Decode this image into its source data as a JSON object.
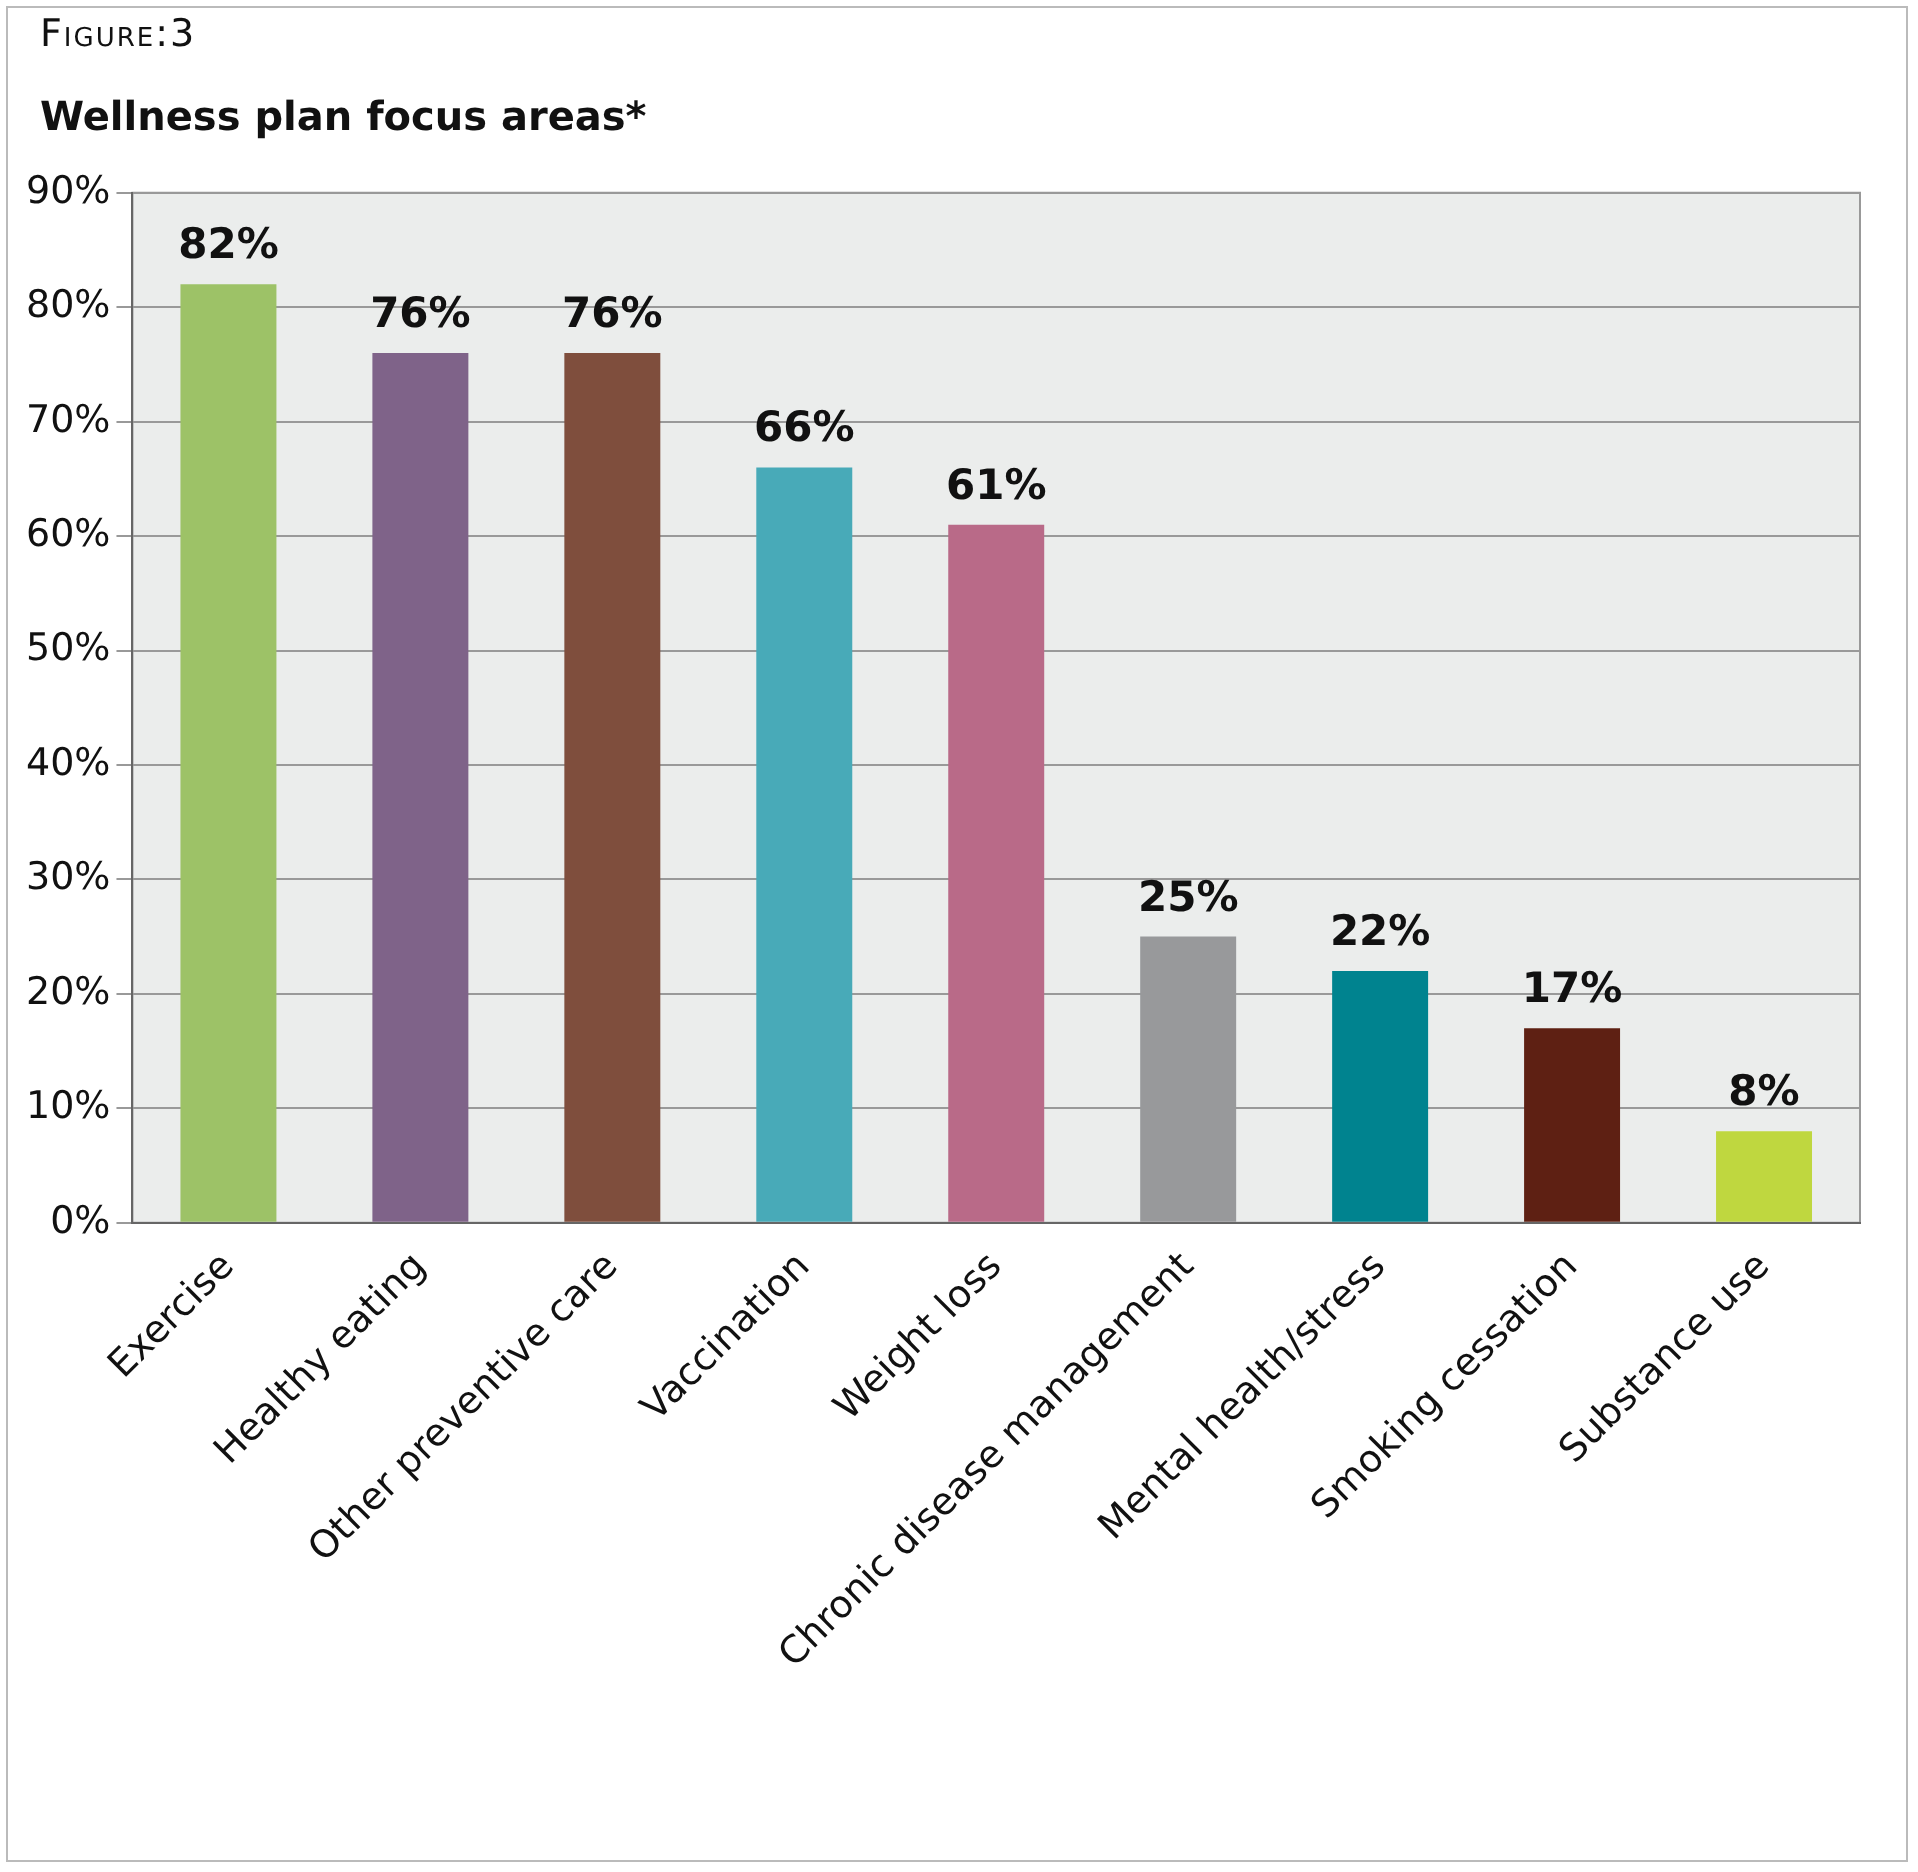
{
  "chart_data": {
    "type": "bar",
    "title": "Figure:3",
    "subtitle": "Wellness plan focus areas*",
    "categories": [
      "Exercise",
      "Healthy eating",
      "Other preventive care",
      "Vaccination",
      "Weight loss",
      "Chronic disease management",
      "Mental health/stress",
      "Smoking cessation",
      "Substance use"
    ],
    "values": [
      82,
      76,
      76,
      66,
      61,
      25,
      22,
      17,
      8
    ],
    "value_labels": [
      "82%",
      "76%",
      "76%",
      "66%",
      "61%",
      "25%",
      "22%",
      "17%",
      "8%"
    ],
    "colors": [
      "#9dc267",
      "#7f6389",
      "#7f4e3d",
      "#48aab8",
      "#b96a88",
      "#98999b",
      "#00838f",
      "#5e2013",
      "#bfd73f"
    ],
    "ylim": [
      0,
      90
    ],
    "yticks": [
      {
        "value": 0,
        "label": "0%"
      },
      {
        "value": 10,
        "label": "10%"
      },
      {
        "value": 20,
        "label": "20%"
      },
      {
        "value": 30,
        "label": "30%"
      },
      {
        "value": 40,
        "label": "40%"
      },
      {
        "value": 50,
        "label": "50%"
      },
      {
        "value": 60,
        "label": "60%"
      },
      {
        "value": 70,
        "label": "70%"
      },
      {
        "value": 80,
        "label": "80%"
      },
      {
        "value": 90,
        "label": "90%"
      }
    ],
    "grid": "y",
    "legend": false
  }
}
